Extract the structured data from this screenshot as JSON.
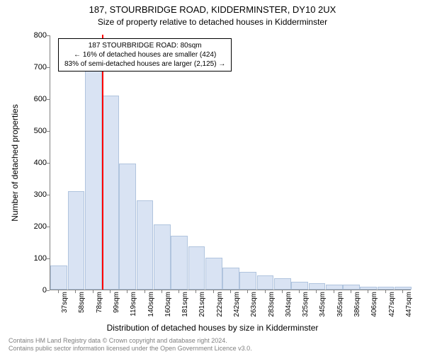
{
  "title": "187, STOURBRIDGE ROAD, KIDDERMINSTER, DY10 2UX",
  "subtitle": "Size of property relative to detached houses in Kidderminster",
  "ylabel": "Number of detached properties",
  "xlabel": "Distribution of detached houses by size in Kidderminster",
  "footer_line1": "Contains HM Land Registry data © Crown copyright and database right 2024.",
  "footer_line2": "Contains public sector information licensed under the Open Government Licence v3.0.",
  "chart": {
    "type": "bar",
    "ylim": [
      0,
      800
    ],
    "yticks": [
      0,
      100,
      200,
      300,
      400,
      500,
      600,
      700,
      800
    ],
    "x_categories": [
      "37sqm",
      "58sqm",
      "78sqm",
      "99sqm",
      "119sqm",
      "140sqm",
      "160sqm",
      "181sqm",
      "201sqm",
      "222sqm",
      "242sqm",
      "263sqm",
      "283sqm",
      "304sqm",
      "325sqm",
      "345sqm",
      "365sqm",
      "386sqm",
      "406sqm",
      "427sqm",
      "447sqm"
    ],
    "values": [
      75,
      310,
      740,
      610,
      395,
      280,
      205,
      170,
      135,
      100,
      70,
      55,
      45,
      35,
      25,
      20,
      15,
      15,
      10,
      8,
      8
    ],
    "bar_fill": "#d9e3f3",
    "bar_border": "#b0c4de",
    "background_color": "#ffffff",
    "grid_color": "#808080",
    "marker_x_category": 2,
    "marker_color": "#ff0000"
  },
  "info_box": {
    "line1": "187 STOURBRIDGE ROAD: 80sqm",
    "line2": "← 16% of detached houses are smaller (424)",
    "line3": "83% of semi-detached houses are larger (2,125) →"
  }
}
